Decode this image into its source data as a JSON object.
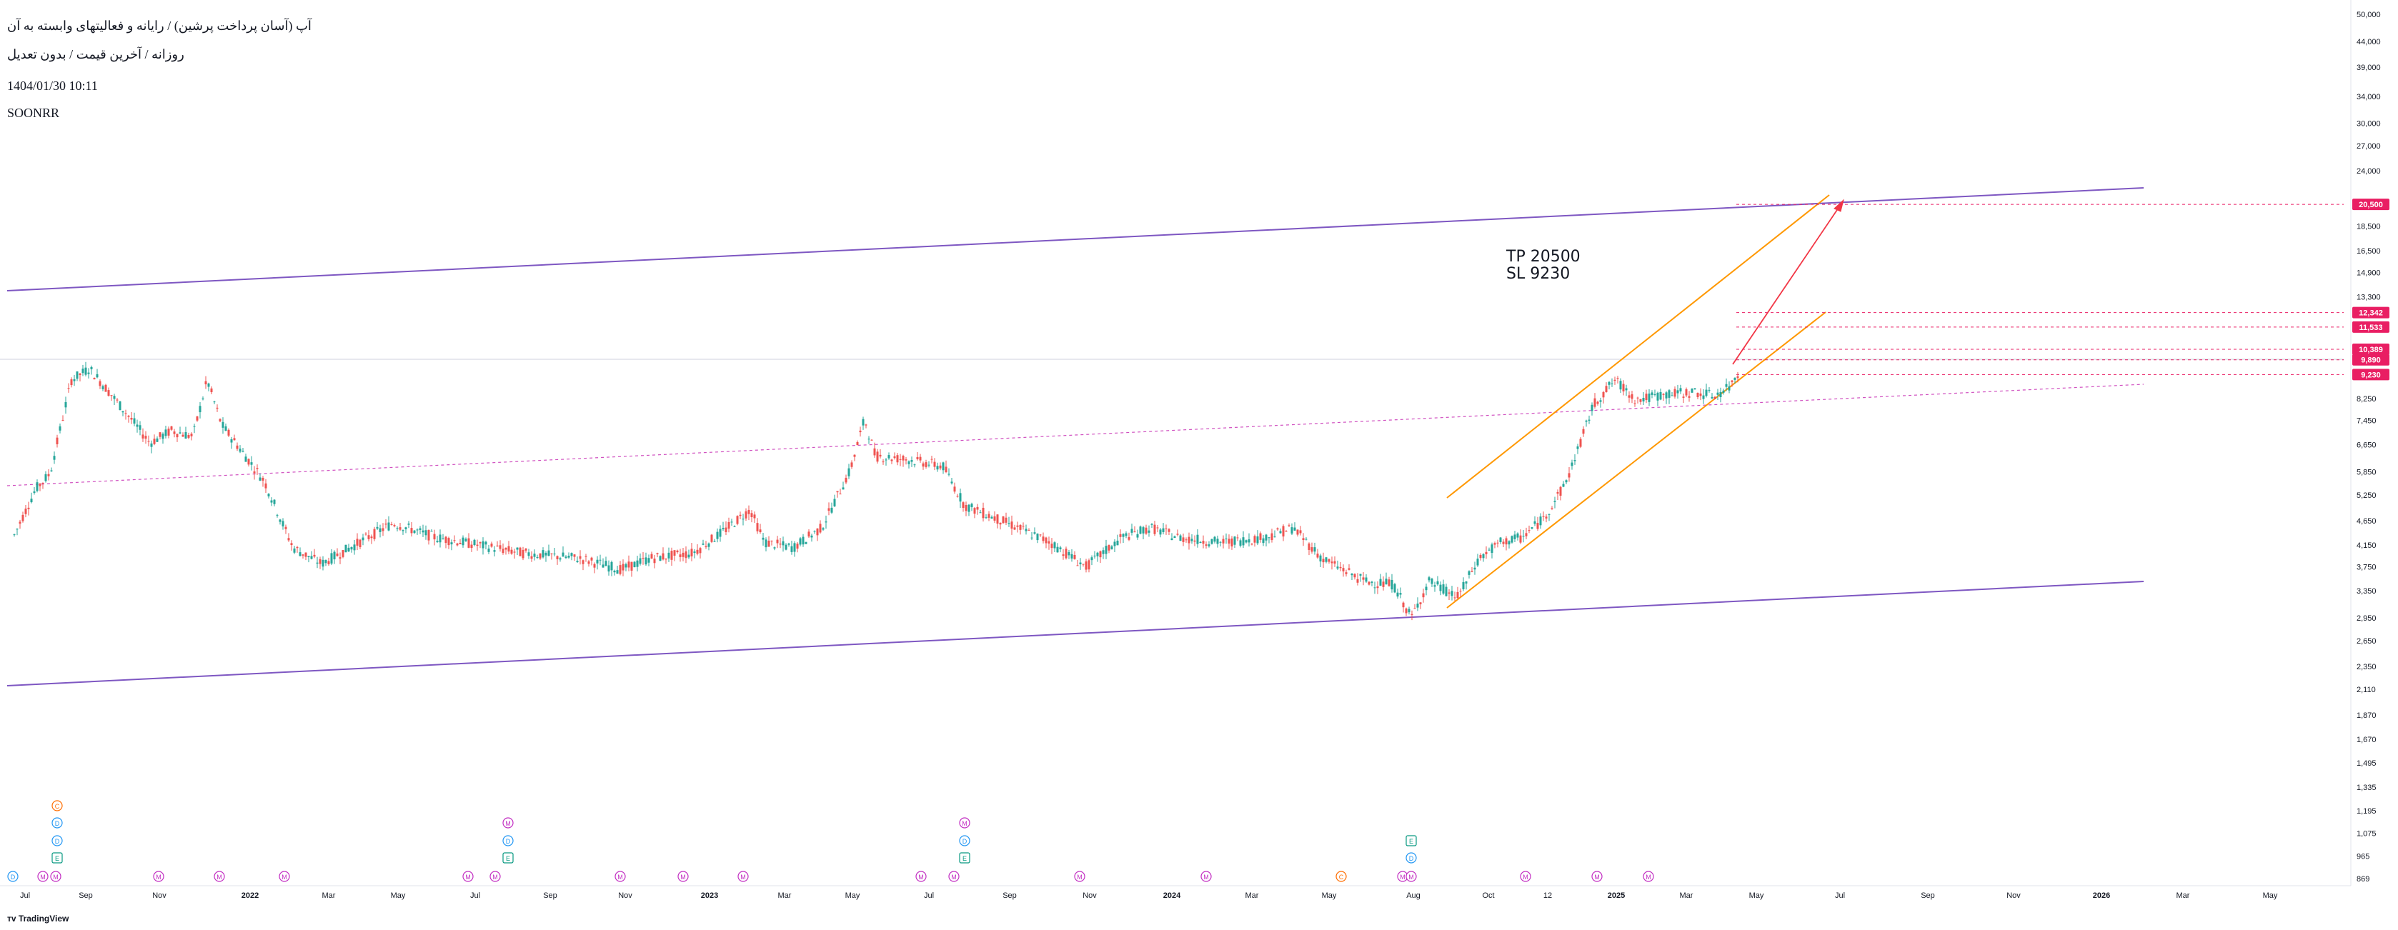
{
  "header": {
    "title": "آپ (آسان پرداخت پرشین) / رایانه و فعالیتهای وابسته به آن",
    "subtitle": "روزانه / آخرین قیمت / بدون تعدیل",
    "datetime": "1404/01/30 10:11",
    "symbol": "SOONRR"
  },
  "annotation": {
    "tp": "TP 20500",
    "sl": "SL 9230"
  },
  "branding": "TradingView",
  "colors": {
    "up": "#26a69a",
    "down": "#ef5350",
    "channel": "#7e57c2",
    "trend": "#ff9800",
    "arrow": "#f23645",
    "level": "#e91e63",
    "dotted": "#d050c0"
  },
  "chart_data": {
    "type": "candlestick",
    "y_scale": "log",
    "y_ticks": [
      "50,000",
      "44,000",
      "39,000",
      "34,000",
      "30,000",
      "27,000",
      "24,000",
      "18,500",
      "16,500",
      "14,900",
      "13,300",
      "9,890",
      "8,250",
      "7,450",
      "6,650",
      "5,850",
      "5,250",
      "4,650",
      "4,150",
      "3,750",
      "3,350",
      "2,950",
      "2,650",
      "2,350",
      "2,110",
      "1,870",
      "1,670",
      "1,495",
      "1,335",
      "1,195",
      "1,075",
      "965",
      "869"
    ],
    "y_tick_values": [
      50000,
      44000,
      39000,
      34000,
      30000,
      27000,
      24000,
      18500,
      16500,
      14900,
      13300,
      9890,
      8250,
      7450,
      6650,
      5850,
      5250,
      4650,
      4150,
      3750,
      3350,
      2950,
      2650,
      2350,
      2110,
      1870,
      1670,
      1495,
      1335,
      1195,
      1075,
      965,
      869
    ],
    "x_labels": [
      "Jul",
      "Sep",
      "Nov",
      "2022",
      "Mar",
      "May",
      "Jul",
      "Sep",
      "Nov",
      "2023",
      "Mar",
      "May",
      "Jul",
      "Sep",
      "Nov",
      "2024",
      "Mar",
      "May",
      "Aug",
      "Oct",
      "12",
      "2025",
      "Mar",
      "May",
      "Jul",
      "Sep",
      "Nov",
      "2026",
      "Mar",
      "May"
    ],
    "price_labels": [
      {
        "text": "20,500",
        "value": 20500
      },
      {
        "text": "12,342",
        "value": 12342
      },
      {
        "text": "11,533",
        "value": 11533
      },
      {
        "text": "10,389",
        "value": 10389
      },
      {
        "text": "9,890",
        "value": 9890
      },
      {
        "text": "9,230",
        "value": 9230
      }
    ],
    "key_prices": [
      {
        "x": 10,
        "v": 4350
      },
      {
        "x": 40,
        "v": 5400
      },
      {
        "x": 60,
        "v": 5800
      },
      {
        "x": 90,
        "v": 9000
      },
      {
        "x": 115,
        "v": 9500
      },
      {
        "x": 140,
        "v": 8600
      },
      {
        "x": 170,
        "v": 7600
      },
      {
        "x": 200,
        "v": 6700
      },
      {
        "x": 230,
        "v": 7100
      },
      {
        "x": 260,
        "v": 6900
      },
      {
        "x": 280,
        "v": 9000
      },
      {
        "x": 300,
        "v": 7300
      },
      {
        "x": 330,
        "v": 6400
      },
      {
        "x": 360,
        "v": 5600
      },
      {
        "x": 400,
        "v": 4100
      },
      {
        "x": 440,
        "v": 3800
      },
      {
        "x": 480,
        "v": 4100
      },
      {
        "x": 540,
        "v": 4600
      },
      {
        "x": 600,
        "v": 4300
      },
      {
        "x": 660,
        "v": 4150
      },
      {
        "x": 720,
        "v": 4000
      },
      {
        "x": 800,
        "v": 3900
      },
      {
        "x": 860,
        "v": 3700
      },
      {
        "x": 900,
        "v": 3900
      },
      {
        "x": 960,
        "v": 4000
      },
      {
        "x": 1000,
        "v": 4400
      },
      {
        "x": 1040,
        "v": 4900
      },
      {
        "x": 1060,
        "v": 4200
      },
      {
        "x": 1100,
        "v": 4100
      },
      {
        "x": 1140,
        "v": 4500
      },
      {
        "x": 1180,
        "v": 5900
      },
      {
        "x": 1200,
        "v": 7500
      },
      {
        "x": 1215,
        "v": 6300
      },
      {
        "x": 1260,
        "v": 6200
      },
      {
        "x": 1310,
        "v": 6000
      },
      {
        "x": 1340,
        "v": 5000
      },
      {
        "x": 1400,
        "v": 4600
      },
      {
        "x": 1460,
        "v": 4200
      },
      {
        "x": 1510,
        "v": 3750
      },
      {
        "x": 1560,
        "v": 4300
      },
      {
        "x": 1600,
        "v": 4500
      },
      {
        "x": 1640,
        "v": 4300
      },
      {
        "x": 1700,
        "v": 4200
      },
      {
        "x": 1760,
        "v": 4300
      },
      {
        "x": 1800,
        "v": 4500
      },
      {
        "x": 1840,
        "v": 3900
      },
      {
        "x": 1900,
        "v": 3500
      },
      {
        "x": 1940,
        "v": 3450
      },
      {
        "x": 1965,
        "v": 2950
      },
      {
        "x": 1990,
        "v": 3500
      },
      {
        "x": 2030,
        "v": 3250
      },
      {
        "x": 2060,
        "v": 3900
      },
      {
        "x": 2090,
        "v": 4200
      },
      {
        "x": 2120,
        "v": 4300
      },
      {
        "x": 2150,
        "v": 4700
      },
      {
        "x": 2180,
        "v": 5500
      },
      {
        "x": 2200,
        "v": 6600
      },
      {
        "x": 2220,
        "v": 8000
      },
      {
        "x": 2250,
        "v": 9000
      },
      {
        "x": 2280,
        "v": 8200
      },
      {
        "x": 2320,
        "v": 8400
      },
      {
        "x": 2360,
        "v": 8500
      },
      {
        "x": 2390,
        "v": 8350
      },
      {
        "x": 2410,
        "v": 8700
      },
      {
        "x": 2425,
        "v": 9400
      }
    ],
    "events": {
      "row1": [
        {
          "x": 8,
          "l": "D"
        },
        {
          "x": 50,
          "l": "M"
        },
        {
          "x": 68,
          "l": "M"
        },
        {
          "x": 212,
          "l": "M"
        },
        {
          "x": 297,
          "l": "M"
        },
        {
          "x": 388,
          "l": "M"
        },
        {
          "x": 645,
          "l": "M"
        },
        {
          "x": 683,
          "l": "M"
        },
        {
          "x": 858,
          "l": "M"
        },
        {
          "x": 946,
          "l": "M"
        },
        {
          "x": 1030,
          "l": "M"
        },
        {
          "x": 1279,
          "l": "M"
        },
        {
          "x": 1325,
          "l": "M"
        },
        {
          "x": 1501,
          "l": "M"
        },
        {
          "x": 1678,
          "l": "M"
        },
        {
          "x": 1867,
          "l": "C"
        },
        {
          "x": 1953,
          "l": "M"
        },
        {
          "x": 1965,
          "l": "M"
        },
        {
          "x": 2125,
          "l": "M"
        },
        {
          "x": 2225,
          "l": "M"
        },
        {
          "x": 2297,
          "l": "M"
        }
      ],
      "row2": [
        {
          "x": 70,
          "l": "E"
        },
        {
          "x": 701,
          "l": "E"
        },
        {
          "x": 1340,
          "l": "E"
        },
        {
          "x": 1965,
          "l": "D"
        }
      ],
      "row3": [
        {
          "x": 70,
          "l": "D"
        },
        {
          "x": 701,
          "l": "D"
        },
        {
          "x": 1340,
          "l": "D"
        },
        {
          "x": 1965,
          "l": "E"
        }
      ],
      "row4": [
        {
          "x": 70,
          "l": "D"
        },
        {
          "x": 701,
          "l": "M"
        },
        {
          "x": 1340,
          "l": "M"
        }
      ],
      "row5": [
        {
          "x": 70,
          "l": "C"
        }
      ]
    }
  }
}
